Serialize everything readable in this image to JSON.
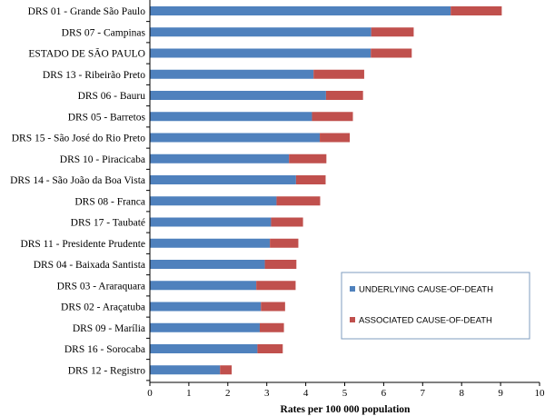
{
  "chart_data": {
    "type": "bar",
    "orientation": "horizontal",
    "stacked": true,
    "xlabel": "Rates per  100 000 population",
    "xlim": [
      0,
      10
    ],
    "xticks": [
      "0",
      "1",
      "2",
      "3",
      "4",
      "5",
      "6",
      "7",
      "8",
      "9",
      "10"
    ],
    "grid": false,
    "legend_position": "right",
    "categories": [
      "DRS 01 - Grande São Paulo",
      "DRS 07 - Campinas",
      "ESTADO DE SÃO PAULO",
      "DRS 13 - Ribeirão Preto",
      "DRS 06 - Bauru",
      "DRS 05 - Barretos",
      "DRS 15 - São José do Rio Preto",
      "DRS 10 - Piracicaba",
      "DRS 14 - São João da Boa Vista",
      "DRS 08 - Franca",
      "DRS 17 - Taubaté",
      "DRS 11 - Presidente Prudente",
      "DRS 04 - Baixada Santista",
      "DRS 03 - Araraquara",
      "DRS 02 - Araçatuba",
      "DRS 09 - Marília",
      "DRS 16 - Sorocaba",
      "DRS 12 - Registro"
    ],
    "series": [
      {
        "name": "UNDERLYING CAUSE-OF-DEATH",
        "color": "#4f81bd",
        "values": [
          7.72,
          5.68,
          5.67,
          4.2,
          4.52,
          4.16,
          4.36,
          3.57,
          3.75,
          3.25,
          3.11,
          3.08,
          2.95,
          2.73,
          2.85,
          2.82,
          2.76,
          1.8
        ]
      },
      {
        "name": "ASSOCIATED CAUSE-OF-DEATH",
        "color": "#c0504d",
        "values": [
          1.31,
          1.09,
          1.05,
          1.3,
          0.95,
          1.05,
          0.77,
          0.96,
          0.76,
          1.12,
          0.82,
          0.73,
          0.81,
          1.01,
          0.62,
          0.62,
          0.65,
          0.3
        ]
      }
    ]
  }
}
